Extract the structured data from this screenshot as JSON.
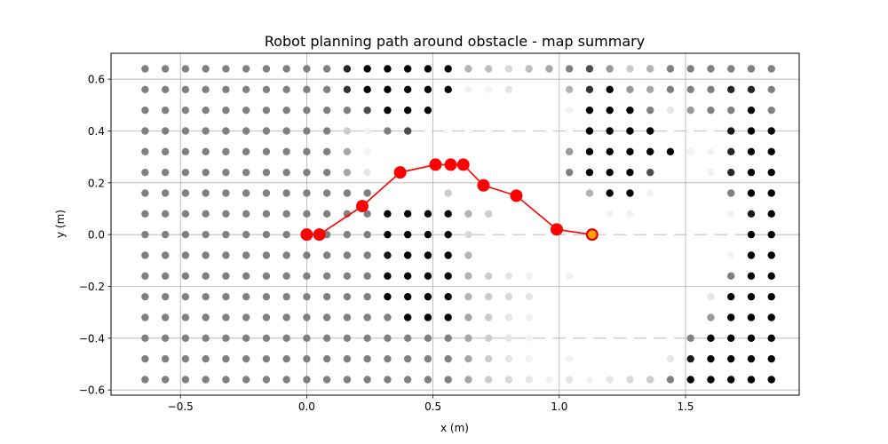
{
  "chart_data": {
    "type": "scatter",
    "title": "Robot planning path around obstacle - map summary",
    "xlabel": "x (m)",
    "ylabel": "y (m)",
    "xlim": [
      -0.775,
      1.95
    ],
    "ylim": [
      -0.62,
      0.7
    ],
    "grid": true,
    "x_ticks": [
      -0.5,
      0.0,
      0.5,
      1.0,
      1.5
    ],
    "x_tick_labels": [
      "−0.5",
      "0.0",
      "0.5",
      "1.0",
      "1.5"
    ],
    "y_ticks": [
      -0.6,
      -0.4,
      -0.2,
      0.0,
      0.2,
      0.4,
      0.6
    ],
    "y_tick_labels": [
      "−0.6",
      "−0.4",
      "−0.2",
      "0.0",
      "0.2",
      "0.4",
      "0.6"
    ],
    "occupancy_grid": {
      "x": [
        -0.64,
        -0.56,
        -0.48,
        -0.4,
        -0.32,
        -0.24,
        -0.16,
        -0.08,
        0.0,
        0.08,
        0.16,
        0.24,
        0.32,
        0.4,
        0.48,
        0.56,
        0.64,
        0.72,
        0.8,
        0.88,
        0.96,
        1.04,
        1.12,
        1.2,
        1.28,
        1.36,
        1.44,
        1.52,
        1.6,
        1.68,
        1.76,
        1.84
      ],
      "y": [
        0.64,
        0.56,
        0.48,
        0.4,
        0.32,
        0.24,
        0.16,
        0.08,
        0.0,
        -0.08,
        -0.16,
        -0.24,
        -0.32,
        -0.4,
        -0.48,
        -0.56
      ],
      "value_scale": "0 = white (free), 1 = black (occupied), 0.5 = grey (unknown)",
      "values": [
        [
          0.5,
          0.5,
          0.5,
          0.5,
          0.5,
          0.5,
          0.5,
          0.5,
          0.5,
          0.5,
          0.85,
          1,
          1,
          1,
          1,
          1,
          0.3,
          0.25,
          0.15,
          0.25,
          0.35,
          0.5,
          0.7,
          0.4,
          0.2,
          0.3,
          0.5,
          0.5,
          0.5,
          0.5,
          0.5,
          0.5
        ],
        [
          0.5,
          0.5,
          0.5,
          0.5,
          0.5,
          0.5,
          0.5,
          0.5,
          0.5,
          0.5,
          0.8,
          1,
          1,
          1,
          1,
          1,
          0.05,
          0.05,
          0.1,
          0,
          0,
          0.3,
          0.8,
          1,
          0.4,
          0.35,
          0.5,
          0.5,
          0.5,
          0.85,
          0.85,
          0.5
        ],
        [
          0.5,
          0.5,
          0.5,
          0.5,
          0.5,
          0.5,
          0.5,
          0.5,
          0.5,
          0.5,
          0.5,
          0.7,
          1,
          1,
          1,
          0,
          0,
          0,
          0,
          0,
          0,
          0.05,
          1,
          1,
          1,
          0.5,
          0.1,
          0.4,
          0.5,
          0.5,
          1,
          0.5
        ],
        [
          0.5,
          0.5,
          0.5,
          0.5,
          0.5,
          0.5,
          0.5,
          0.5,
          0.5,
          0.5,
          0.2,
          0.05,
          0.5,
          0.7,
          0,
          0,
          0,
          0,
          0,
          0,
          0,
          0,
          1,
          1,
          1,
          1,
          0,
          0,
          0,
          0.9,
          1,
          1
        ],
        [
          0.5,
          0.5,
          0.5,
          0.5,
          0.5,
          0.5,
          0.5,
          0.5,
          0.5,
          0.5,
          0.35,
          0.05,
          0,
          0,
          0,
          0,
          0,
          0,
          0,
          0,
          0,
          0.4,
          1,
          1,
          1,
          1,
          1,
          0.05,
          0.05,
          0.85,
          1,
          1
        ],
        [
          0.5,
          0.5,
          0.5,
          0.5,
          0.5,
          0.5,
          0.5,
          0.5,
          0.5,
          0.5,
          0.35,
          0.1,
          0,
          0,
          0,
          0,
          0,
          0,
          0,
          0,
          0,
          0.5,
          1,
          1,
          1,
          0.7,
          0,
          0,
          0.05,
          0.85,
          1,
          1
        ],
        [
          0.5,
          0.5,
          0.5,
          0.5,
          0.5,
          0.5,
          0.5,
          0.5,
          0.5,
          0.5,
          0.5,
          0.5,
          0,
          0,
          0,
          0.2,
          0,
          0,
          0,
          0,
          0,
          0,
          0.3,
          1,
          1,
          0.05,
          0,
          0,
          0,
          0.5,
          1,
          1
        ],
        [
          0.5,
          0.5,
          0.5,
          0.5,
          0.5,
          0.5,
          0.5,
          0.5,
          0.5,
          0.5,
          0.5,
          0.5,
          1,
          1,
          1,
          1,
          0.3,
          0.2,
          0,
          0,
          0,
          0,
          0,
          0.05,
          0.05,
          0,
          0,
          0,
          0,
          0.05,
          0.9,
          1
        ],
        [
          0.5,
          0.5,
          0.5,
          0.5,
          0.5,
          0.5,
          0.5,
          0.5,
          0.5,
          0.5,
          0.5,
          0.5,
          1,
          1,
          1,
          1,
          0.15,
          0,
          0,
          0,
          0,
          0,
          0,
          0,
          0,
          0,
          0,
          0,
          0,
          0,
          1,
          1
        ],
        [
          0.5,
          0.5,
          0.5,
          0.5,
          0.5,
          0.5,
          0.5,
          0.5,
          0.5,
          0.5,
          0.5,
          0.5,
          0.9,
          1,
          1,
          1,
          0.3,
          0,
          0,
          0,
          0,
          0,
          0,
          0,
          0,
          0,
          0,
          0,
          0,
          0.05,
          1,
          1
        ],
        [
          0.5,
          0.5,
          0.5,
          0.5,
          0.5,
          0.5,
          0.5,
          0.5,
          0.5,
          0.5,
          0.5,
          0.5,
          1,
          1,
          1,
          1,
          0.3,
          0.2,
          0.1,
          0.05,
          0,
          0.05,
          0,
          0,
          0,
          0,
          0,
          0,
          0,
          0.5,
          1,
          1
        ],
        [
          0.5,
          0.5,
          0.5,
          0.5,
          0.5,
          0.5,
          0.5,
          0.5,
          0.5,
          0.5,
          0.5,
          0.5,
          1,
          1,
          1,
          1,
          0.3,
          0.2,
          0.15,
          0.1,
          0,
          0,
          0,
          0,
          0,
          0,
          0,
          0,
          0.1,
          1,
          1,
          1
        ],
        [
          0.5,
          0.5,
          0.5,
          0.5,
          0.5,
          0.5,
          0.5,
          0.5,
          0.5,
          0.5,
          0.5,
          0.5,
          0.5,
          1,
          1,
          1,
          0.35,
          0.2,
          0.1,
          0.05,
          0,
          0,
          0,
          0,
          0,
          0,
          0,
          0,
          0.4,
          1,
          1,
          1
        ],
        [
          0.5,
          0.5,
          0.5,
          0.5,
          0.5,
          0.5,
          0.5,
          0.5,
          0.5,
          0.5,
          0.5,
          0.5,
          0.5,
          0.5,
          0.5,
          0.5,
          0.35,
          0.2,
          0.1,
          0.05,
          0,
          0,
          0,
          0,
          0,
          0,
          0,
          0.5,
          1,
          1,
          1,
          1
        ],
        [
          0.5,
          0.5,
          0.5,
          0.5,
          0.5,
          0.5,
          0.5,
          0.5,
          0.5,
          0.5,
          0.5,
          0.5,
          0.5,
          0.5,
          0.5,
          0.5,
          0.35,
          0.2,
          0.1,
          0.05,
          0,
          0.05,
          0,
          0,
          0,
          0,
          0.1,
          0.9,
          1,
          1,
          1,
          1
        ],
        [
          0.5,
          0.5,
          0.5,
          0.5,
          0.5,
          0.5,
          0.5,
          0.5,
          0.5,
          0.5,
          0.5,
          0.5,
          0.5,
          0.5,
          0.5,
          0.5,
          0.35,
          0.2,
          0.15,
          0.1,
          0.05,
          0.1,
          0.05,
          0.1,
          0.15,
          0.2,
          0.5,
          1,
          1,
          1,
          1,
          1
        ]
      ]
    },
    "path": {
      "color": "#ff0000",
      "x": [
        0.0,
        0.05,
        0.22,
        0.37,
        0.51,
        0.57,
        0.62,
        0.7,
        0.83,
        0.99,
        1.13
      ],
      "y": [
        0.0,
        0.0,
        0.11,
        0.24,
        0.27,
        0.27,
        0.27,
        0.19,
        0.15,
        0.02,
        0.0
      ]
    },
    "goal": {
      "x": 1.13,
      "y": 0.0,
      "fill": "#ffa500",
      "edge": "#e00000"
    }
  }
}
